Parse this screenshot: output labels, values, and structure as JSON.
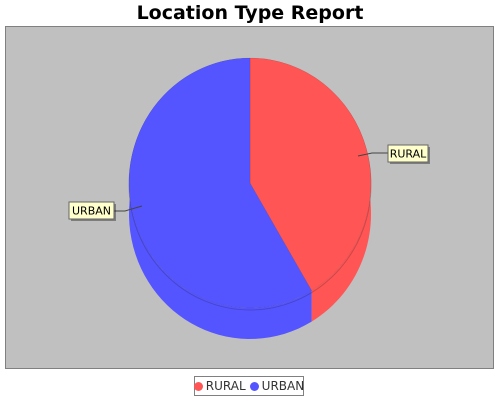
{
  "chart_data": {
    "type": "pie",
    "title": "Location Type Report",
    "three_d": true,
    "slices": [
      {
        "label": "RURAL",
        "value": 41.5,
        "color": "#ff5555"
      },
      {
        "label": "URBAN",
        "value": 58.5,
        "color": "#5555ff"
      }
    ],
    "legend": {
      "position": "bottom",
      "items": [
        {
          "label": "RURAL",
          "color": "#ff5555"
        },
        {
          "label": "URBAN",
          "color": "#5555ff"
        }
      ]
    },
    "plot_background": "#c0c0c0",
    "label_background": "#ffffcc"
  }
}
